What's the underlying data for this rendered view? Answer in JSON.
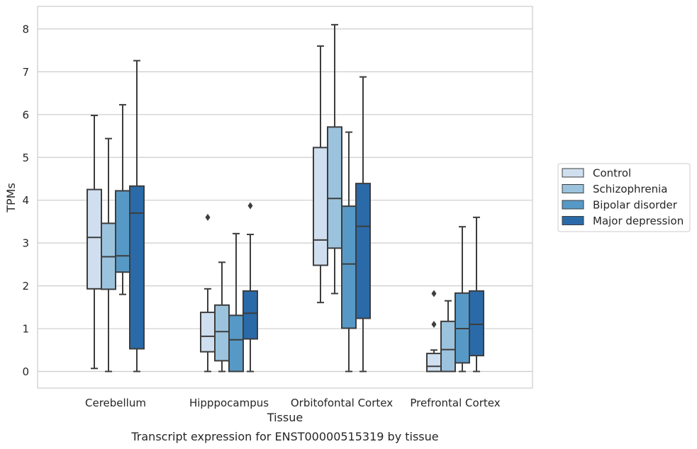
{
  "chart_data": {
    "type": "box",
    "title": "",
    "caption": "Transcript expression for ENST00000515319 by tissue",
    "xlabel": "Tissue",
    "ylabel": "TPMs",
    "ylim": [
      -0.4,
      8.5
    ],
    "yticks": [
      0,
      1,
      2,
      3,
      4,
      5,
      6,
      7,
      8
    ],
    "grid": "horizontal",
    "legend_position": "right",
    "categories": [
      "Cerebellum",
      "Hipppocampus",
      "Orbitofontal Cortex",
      "Prefrontal Cortex"
    ],
    "series": [
      {
        "name": "Control",
        "color": "#cfdff0",
        "boxes": [
          {
            "low": 0.07,
            "q1": 1.93,
            "median": 3.13,
            "q3": 4.25,
            "high": 5.98,
            "outliers": []
          },
          {
            "low": 0.0,
            "q1": 0.46,
            "median": 0.82,
            "q3": 1.38,
            "high": 1.93,
            "outliers": [
              3.6
            ]
          },
          {
            "low": 1.61,
            "q1": 2.48,
            "median": 3.07,
            "q3": 5.23,
            "high": 7.6,
            "outliers": []
          },
          {
            "low": 0.0,
            "q1": 0.0,
            "median": 0.12,
            "q3": 0.42,
            "high": 0.5,
            "outliers": [
              1.1,
              1.82
            ]
          }
        ]
      },
      {
        "name": "Schizophrenia",
        "color": "#9cc3dd",
        "boxes": [
          {
            "low": 0.0,
            "q1": 1.92,
            "median": 2.68,
            "q3": 3.46,
            "high": 5.44,
            "outliers": []
          },
          {
            "low": 0.0,
            "q1": 0.25,
            "median": 0.93,
            "q3": 1.55,
            "high": 2.55,
            "outliers": []
          },
          {
            "low": 1.82,
            "q1": 2.88,
            "median": 4.04,
            "q3": 5.71,
            "high": 8.1,
            "outliers": []
          },
          {
            "low": 0.0,
            "q1": 0.0,
            "median": 0.51,
            "q3": 1.17,
            "high": 1.65,
            "outliers": []
          }
        ]
      },
      {
        "name": "Bipolar disorder",
        "color": "#5799c6",
        "boxes": [
          {
            "low": 1.8,
            "q1": 2.32,
            "median": 2.7,
            "q3": 4.22,
            "high": 6.23,
            "outliers": []
          },
          {
            "low": 0.0,
            "q1": 0.0,
            "median": 0.74,
            "q3": 1.31,
            "high": 3.22,
            "outliers": []
          },
          {
            "low": 0.0,
            "q1": 1.01,
            "median": 2.51,
            "q3": 3.86,
            "high": 5.59,
            "outliers": []
          },
          {
            "low": 0.0,
            "q1": 0.2,
            "median": 1.0,
            "q3": 1.83,
            "high": 3.38,
            "outliers": []
          }
        ]
      },
      {
        "name": "Major depression",
        "color": "#2a6aa9",
        "boxes": [
          {
            "low": 0.0,
            "q1": 0.53,
            "median": 3.7,
            "q3": 4.33,
            "high": 7.26,
            "outliers": []
          },
          {
            "low": 0.0,
            "q1": 0.76,
            "median": 1.36,
            "q3": 1.88,
            "high": 3.2,
            "outliers": [
              3.87
            ]
          },
          {
            "low": 0.0,
            "q1": 1.24,
            "median": 3.39,
            "q3": 4.39,
            "high": 6.88,
            "outliers": []
          },
          {
            "low": 0.0,
            "q1": 0.37,
            "median": 1.1,
            "q3": 1.88,
            "high": 3.6,
            "outliers": []
          }
        ]
      }
    ]
  }
}
